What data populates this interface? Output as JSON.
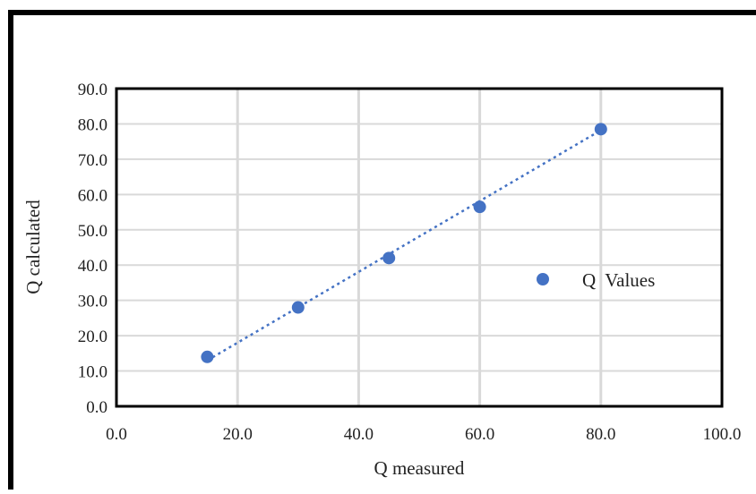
{
  "chart_data": {
    "type": "scatter",
    "title": "",
    "xlabel": "Q measured",
    "ylabel": "Q calculated",
    "xlim": [
      0,
      100
    ],
    "ylim": [
      0,
      90
    ],
    "x_ticks": [
      "0.0",
      "20.0",
      "40.0",
      "60.0",
      "80.0",
      "100.0"
    ],
    "y_ticks": [
      "0.0",
      "10.0",
      "20.0",
      "30.0",
      "40.0",
      "50.0",
      "60.0",
      "70.0",
      "80.0",
      "90.0"
    ],
    "grid": true,
    "legend_position": "right",
    "series": [
      {
        "name": "Q  Values",
        "x": [
          15,
          30,
          45,
          60,
          80
        ],
        "y": [
          14.0,
          28.0,
          42.0,
          56.5,
          78.5
        ],
        "color": "#4472C4"
      }
    ],
    "trendline": {
      "style": "dotted",
      "color": "#4472C4",
      "x": [
        15,
        80
      ],
      "y": [
        13.0,
        78.2
      ]
    }
  }
}
